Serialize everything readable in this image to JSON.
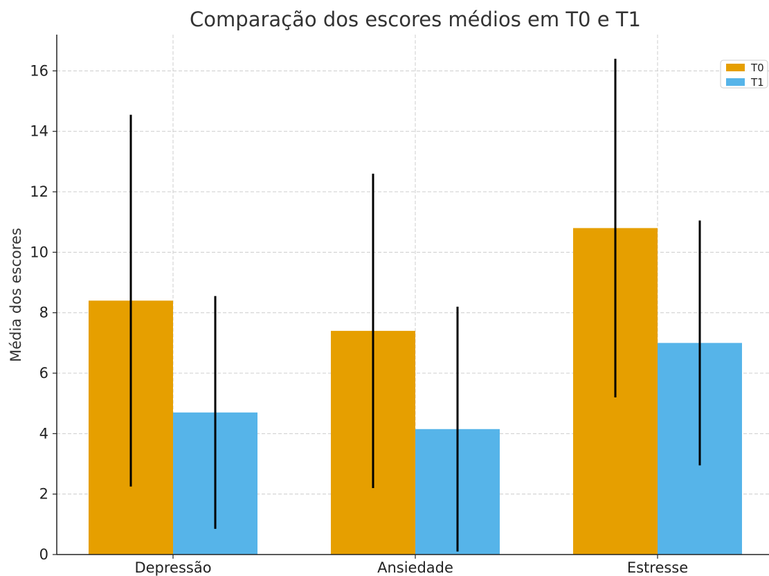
{
  "chart_data": {
    "type": "bar",
    "title": "Comparação dos escores médios em T0 e T1",
    "xlabel": "",
    "ylabel": "Média dos escores",
    "categories": [
      "Depressão",
      "Ansiedade",
      "Estresse"
    ],
    "series": [
      {
        "name": "T0",
        "color": "#E69F00",
        "values": [
          8.4,
          7.4,
          10.8
        ],
        "error": [
          6.15,
          5.2,
          5.6
        ]
      },
      {
        "name": "T1",
        "color": "#56B4E9",
        "values": [
          4.7,
          4.15,
          7.0
        ],
        "error": [
          3.85,
          4.05,
          4.05
        ]
      }
    ],
    "ylim": [
      0,
      17.2
    ],
    "yticks": [
      0,
      2,
      4,
      6,
      8,
      10,
      12,
      14,
      16
    ],
    "grid": true,
    "legend_position": "top-right"
  }
}
